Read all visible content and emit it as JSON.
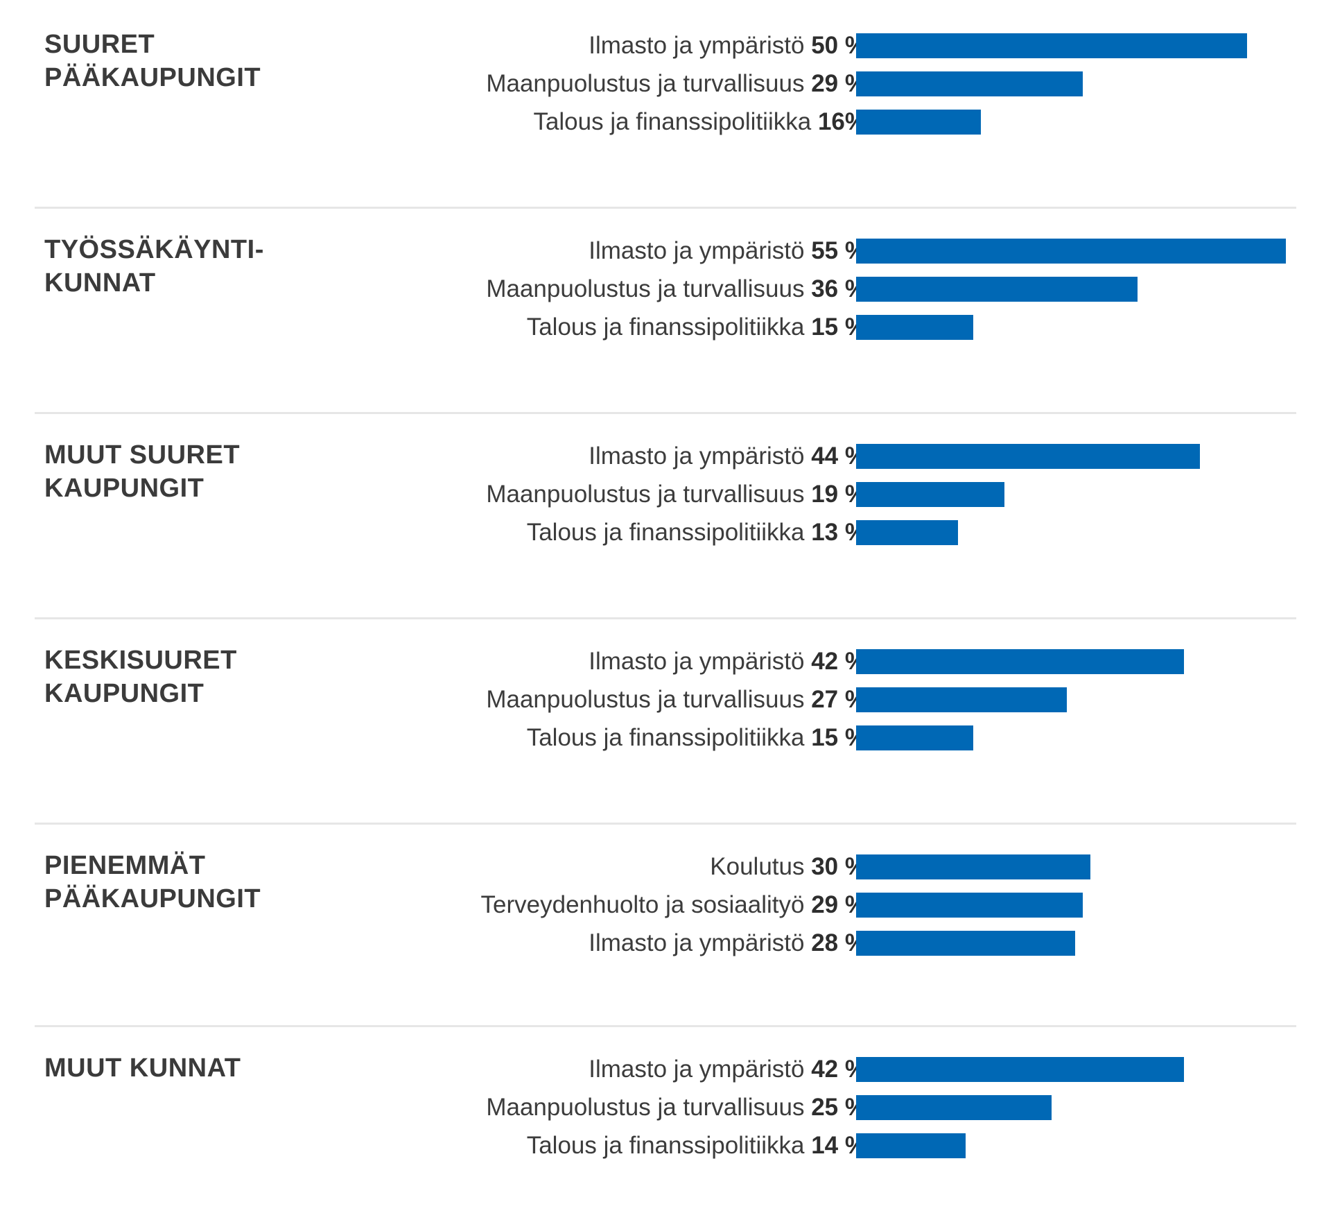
{
  "colors": {
    "bar": "#0068b5",
    "divider": "#e6e6e6",
    "text": "#3c3c3c"
  },
  "chart_data": {
    "type": "bar",
    "orientation": "horizontal",
    "title": "",
    "xlabel": "",
    "ylabel": "",
    "xlim": [
      0,
      55
    ],
    "unit": "%",
    "grid": false,
    "groups": [
      {
        "name": "SUURET\nPÄÄKAUPUNGIT",
        "items": [
          {
            "label": "Ilmasto ja ympäristö",
            "value_text": "50 %",
            "value": 50
          },
          {
            "label": "Maanpuolustus ja turvallisuus",
            "value_text": "29 %",
            "value": 29
          },
          {
            "label": "Talous ja finanssipolitiikka",
            "value_text": "16%",
            "value": 16
          }
        ]
      },
      {
        "name": "TYÖSSÄKÄYNTI-\nKUNNAT",
        "items": [
          {
            "label": "Ilmasto ja ympäristö",
            "value_text": "55 %",
            "value": 55
          },
          {
            "label": "Maanpuolustus ja turvallisuus",
            "value_text": "36 %",
            "value": 36
          },
          {
            "label": "Talous ja finanssipolitiikka",
            "value_text": "15 %",
            "value": 15
          }
        ]
      },
      {
        "name": "MUUT SUURET\nKAUPUNGIT",
        "items": [
          {
            "label": "Ilmasto ja ympäristö",
            "value_text": "44 %",
            "value": 44
          },
          {
            "label": "Maanpuolustus ja turvallisuus",
            "value_text": "19 %",
            "value": 19
          },
          {
            "label": "Talous ja finanssipolitiikka",
            "value_text": "13 %",
            "value": 13
          }
        ]
      },
      {
        "name": "KESKISUURET\nKAUPUNGIT",
        "items": [
          {
            "label": "Ilmasto ja ympäristö",
            "value_text": "42 %",
            "value": 42
          },
          {
            "label": "Maanpuolustus ja turvallisuus",
            "value_text": "27 %",
            "value": 27
          },
          {
            "label": "Talous ja finanssipolitiikka",
            "value_text": "15 %",
            "value": 15
          }
        ]
      },
      {
        "name": "PIENEMMÄT\nPÄÄKAUPUNGIT",
        "items": [
          {
            "label": "Koulutus",
            "value_text": "30 %",
            "value": 30
          },
          {
            "label": "Terveydenhuolto ja sosiaalityö",
            "value_text": "29 %",
            "value": 29
          },
          {
            "label": "Ilmasto ja ympäristö",
            "value_text": "28 %",
            "value": 28
          }
        ]
      },
      {
        "name": "MUUT KUNNAT",
        "items": [
          {
            "label": "Ilmasto ja ympäristö",
            "value_text": "42 %",
            "value": 42
          },
          {
            "label": "Maanpuolustus ja turvallisuus",
            "value_text": "25 %",
            "value": 25
          },
          {
            "label": "Talous ja finanssipolitiikka",
            "value_text": "14 %",
            "value": 14
          }
        ]
      }
    ]
  }
}
